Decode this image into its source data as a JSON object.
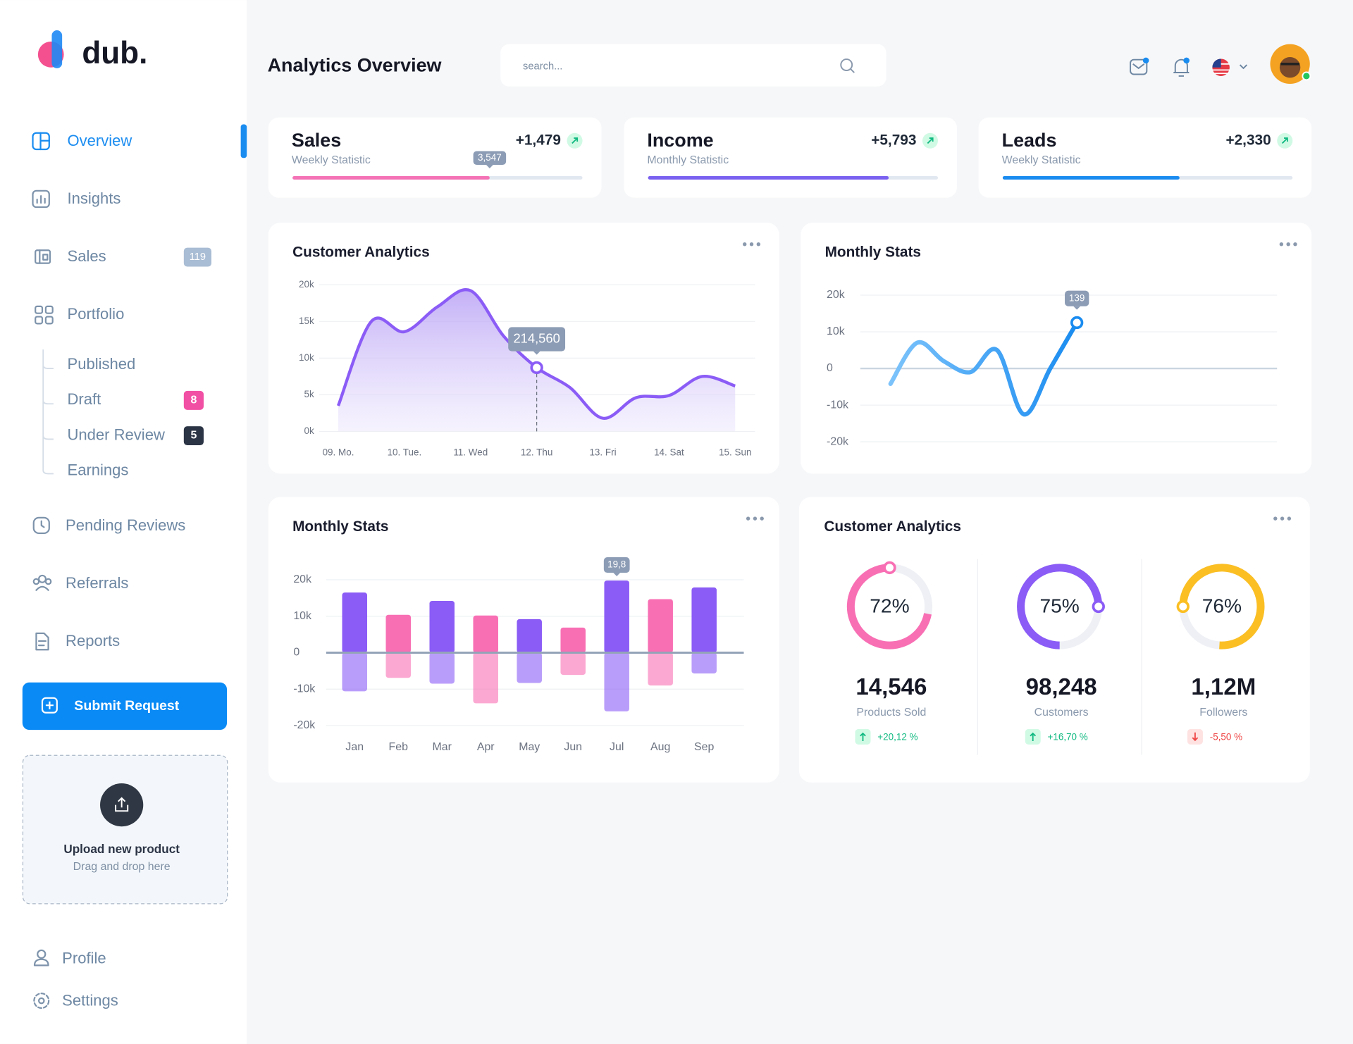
{
  "logo": "dub.",
  "header": {
    "title": "Analytics Overview",
    "search_placeholder": "search..."
  },
  "nav": [
    {
      "label": "Overview"
    },
    {
      "label": "Insights"
    },
    {
      "label": "Sales",
      "badge": "119"
    },
    {
      "label": "Portfolio"
    }
  ],
  "portfolio_items": [
    {
      "label": "Published"
    },
    {
      "label": "Draft",
      "badge": "8"
    },
    {
      "label": "Under Review",
      "badge": "5"
    },
    {
      "label": "Earnings"
    }
  ],
  "nav_more": [
    "Pending Reviews",
    "Referrals",
    "Reports"
  ],
  "submit_button": "Submit Request",
  "upload": {
    "title": "Upload new product",
    "subtitle": "Drag and drop here"
  },
  "footer_nav": [
    "Profile",
    "Settings"
  ],
  "stats": [
    {
      "title": "Sales",
      "subtitle": "Weekly Statistic",
      "change": "+1,479",
      "progress": 68,
      "marker": "3,547",
      "color": "#f472b6"
    },
    {
      "title": "Income",
      "subtitle": "Monthly Statistic",
      "change": "+5,793",
      "progress": 83,
      "color": "#7b61f0"
    },
    {
      "title": "Leads",
      "subtitle": "Weekly Statistic",
      "change": "+2,330",
      "progress": 61,
      "color": "#1a8cf0"
    }
  ],
  "customer_analytics": {
    "type": "area",
    "title": "Customer Analytics",
    "categories": [
      "09. Mo.",
      null,
      "10. Tue.",
      null,
      "11. Wed",
      null,
      "12. Thu",
      null,
      "13. Fri",
      null,
      "14. Sat",
      null,
      "15. Sun"
    ],
    "values": [
      3.5,
      15,
      13.6,
      17,
      19.2,
      13,
      8.7,
      6,
      1.8,
      4.6,
      4.9,
      7.5,
      6.2
    ],
    "ylim": [
      0,
      20
    ],
    "yticks": [
      {
        "value": 0,
        "label": "0k"
      },
      {
        "value": 5,
        "label": "5k"
      },
      {
        "value": 10,
        "label": "10k"
      },
      {
        "value": 15,
        "label": "15k"
      },
      {
        "value": 20,
        "label": "20k"
      }
    ],
    "tooltip": "214,560",
    "color": "#8b5cf6",
    "grid": true
  },
  "monthly_line": {
    "type": "line",
    "title": "Monthly Stats",
    "values": [
      -4.2,
      7,
      2,
      -1,
      5,
      -12.5,
      0,
      12.5
    ],
    "ylim": [
      -20,
      20
    ],
    "yticks": [
      {
        "value": 20,
        "label": "20k"
      },
      {
        "value": 10,
        "label": "10k"
      },
      0,
      {
        "value": -10,
        "label": "-10k"
      },
      {
        "value": -20,
        "label": "-20k"
      }
    ],
    "tooltip": "139",
    "color": "#1a8cf0",
    "grid": true
  },
  "monthly_bars": {
    "type": "bar",
    "title": "Monthly Stats",
    "categories": [
      "Jan",
      "Feb",
      "Mar",
      "Apr",
      "May",
      "Jun",
      "Jul",
      "Aug",
      "Sep"
    ],
    "series": [
      {
        "values": [
          16.5,
          10.4,
          14.2,
          10.2,
          9.2,
          6.9,
          19.8,
          14.7,
          17.9
        ],
        "value_labels": [
          null,
          null,
          null,
          null,
          null,
          null,
          "19,8",
          null,
          null
        ]
      },
      {
        "values": [
          -10.6,
          -6.9,
          -8.5,
          -13.9,
          -8.3,
          -6.1,
          -16.1,
          -9,
          -5.7
        ]
      }
    ],
    "colors": [
      "#8b5cf6",
      "#f86fb4",
      "#8b5cf6",
      "#f86fb4",
      "#8b5cf6",
      "#f86fb4",
      "#8b5cf6",
      "#f86fb4",
      "#8b5cf6"
    ],
    "ylim": [
      -20,
      20
    ],
    "yticks": [
      {
        "value": 20,
        "label": "20k"
      },
      {
        "value": 10,
        "label": "10k"
      },
      0,
      {
        "value": -10,
        "label": "-10k"
      },
      {
        "value": -20,
        "label": "-20k"
      }
    ],
    "grid": true
  },
  "customer_donuts": {
    "type": "donut",
    "title": "Customer Analytics",
    "items": [
      {
        "value": 72,
        "value_label": "72%",
        "total": "14,546",
        "label": "Products Sold",
        "change": "+20,12 %",
        "color": "#f86fb4"
      },
      {
        "value": 75,
        "value_label": "75%",
        "total": "98,248",
        "label": "Customers",
        "change": "+16,70 %",
        "color": "#8b5cf6"
      },
      {
        "value": 76,
        "value_label": "76%",
        "total": "1,12M",
        "label": "Followers",
        "change": "-5,50 %",
        "color": "#fbbf24"
      }
    ]
  }
}
